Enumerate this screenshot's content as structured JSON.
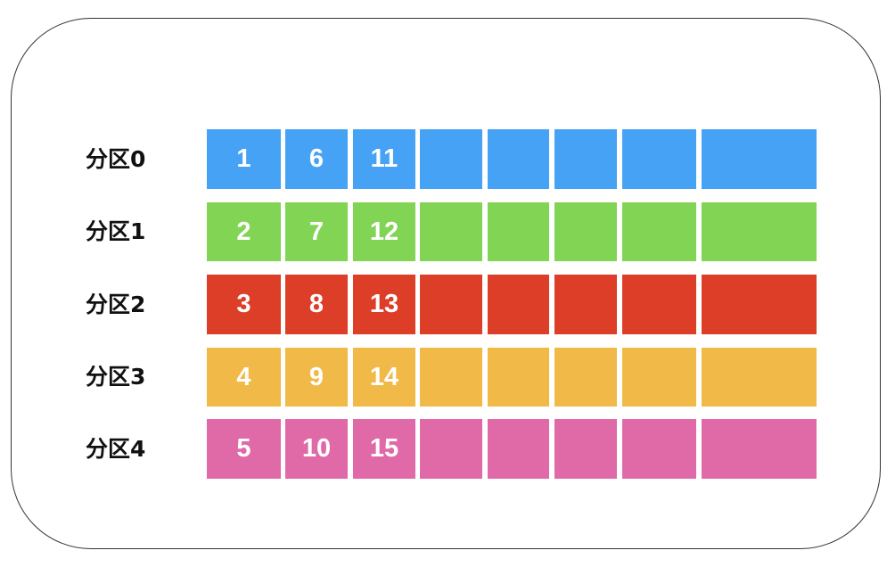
{
  "partitions": [
    {
      "label": "分区0",
      "color": "#46a2f5",
      "values": [
        "1",
        "6",
        "11"
      ]
    },
    {
      "label": "分区1",
      "color": "#82d455",
      "values": [
        "2",
        "7",
        "12"
      ]
    },
    {
      "label": "分区2",
      "color": "#dc3e28",
      "values": [
        "3",
        "8",
        "13"
      ]
    },
    {
      "label": "分区3",
      "color": "#f0b948",
      "values": [
        "4",
        "9",
        "14"
      ]
    },
    {
      "label": "分区4",
      "color": "#e06aa8",
      "values": [
        "5",
        "10",
        "15"
      ]
    }
  ],
  "slots_per_partition": 8
}
